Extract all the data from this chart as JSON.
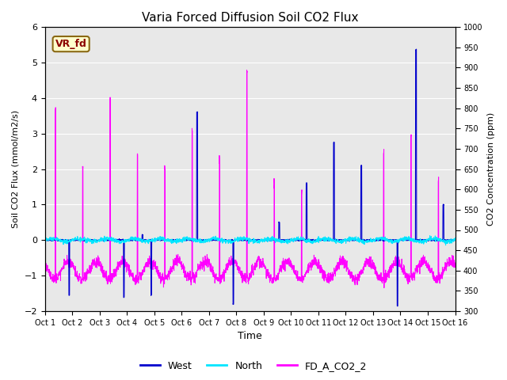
{
  "title": "Varia Forced Diffusion Soil CO2 Flux",
  "xlabel": "Time",
  "ylabel_left": "Soil CO2 Flux (mmol/m2/s)",
  "ylabel_right": "CO2 Concentration (ppm)",
  "ylim_left": [
    -2.0,
    6.0
  ],
  "ylim_right": [
    300,
    1000
  ],
  "x_tick_labels": [
    "Oct 1",
    "Oct 2",
    "Oct 3",
    "Oct 4",
    "Oct 5",
    "Oct 6",
    "Oct 7",
    "Oct 8",
    "Oct 9",
    "Oct 10",
    "Oct 11",
    "Oct 12",
    "Oct 13",
    "Oct 14",
    "Oct 15",
    "Oct 16"
  ],
  "bg_color": "#e8e8e8",
  "legend_label": "VR_fd",
  "legend_bg": "#ffffcc",
  "legend_border": "#8B6914",
  "legend_text_color": "#8B0000",
  "line_west_color": "#0000cd",
  "line_north_color": "#00e5ff",
  "line_co2_color": "#ff00ff",
  "yticks_left": [
    -2.0,
    -1.0,
    0.0,
    1.0,
    2.0,
    3.0,
    4.0,
    5.0,
    6.0
  ],
  "yticks_right": [
    300,
    350,
    400,
    450,
    500,
    550,
    600,
    650,
    700,
    750,
    800,
    850,
    900,
    950,
    1000
  ],
  "n_days": 15,
  "pts_per_day": 144
}
